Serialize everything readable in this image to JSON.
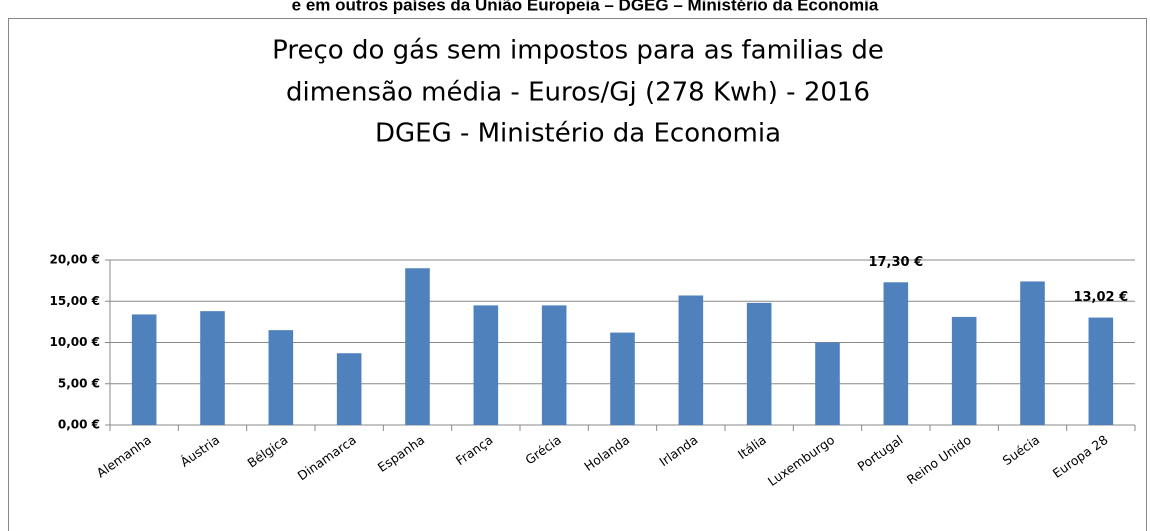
{
  "header": "e em outros países da União Europeia – DGEG – Ministério da Economia",
  "chart_data": {
    "type": "bar",
    "title": [
      "Preço do gás sem impostos para as familias de",
      "dimensão média - Euros/Gj (278 Kwh) - 2016",
      "DGEG - Ministério da Economia"
    ],
    "categories": [
      "Alemanha",
      "Áustria",
      "Bélgica",
      "Dinamarca",
      "Espanha",
      "França",
      "Grécia",
      "Holanda",
      "Irlanda",
      "Itália",
      "Luxemburgo",
      "Portugal",
      "Reino Unido",
      "Suécia",
      "Europa 28"
    ],
    "values": [
      13.4,
      13.8,
      11.5,
      8.7,
      19.0,
      14.5,
      14.5,
      11.2,
      15.7,
      14.8,
      10.0,
      17.3,
      13.1,
      17.4,
      13.02
    ],
    "value_labels": [
      null,
      null,
      null,
      null,
      null,
      null,
      null,
      null,
      null,
      null,
      null,
      "17,30 €",
      null,
      null,
      "13,02 €"
    ],
    "color": "#4f81bd",
    "ylim": [
      0,
      20
    ],
    "yticks": [
      {
        "value": 0,
        "label": "0,00 €"
      },
      {
        "value": 5,
        "label": "5,00 €"
      },
      {
        "value": 10,
        "label": "10,00 €"
      },
      {
        "value": 15,
        "label": "15,00 €"
      },
      {
        "value": 20,
        "label": "20,00 €"
      }
    ],
    "grid": true
  }
}
